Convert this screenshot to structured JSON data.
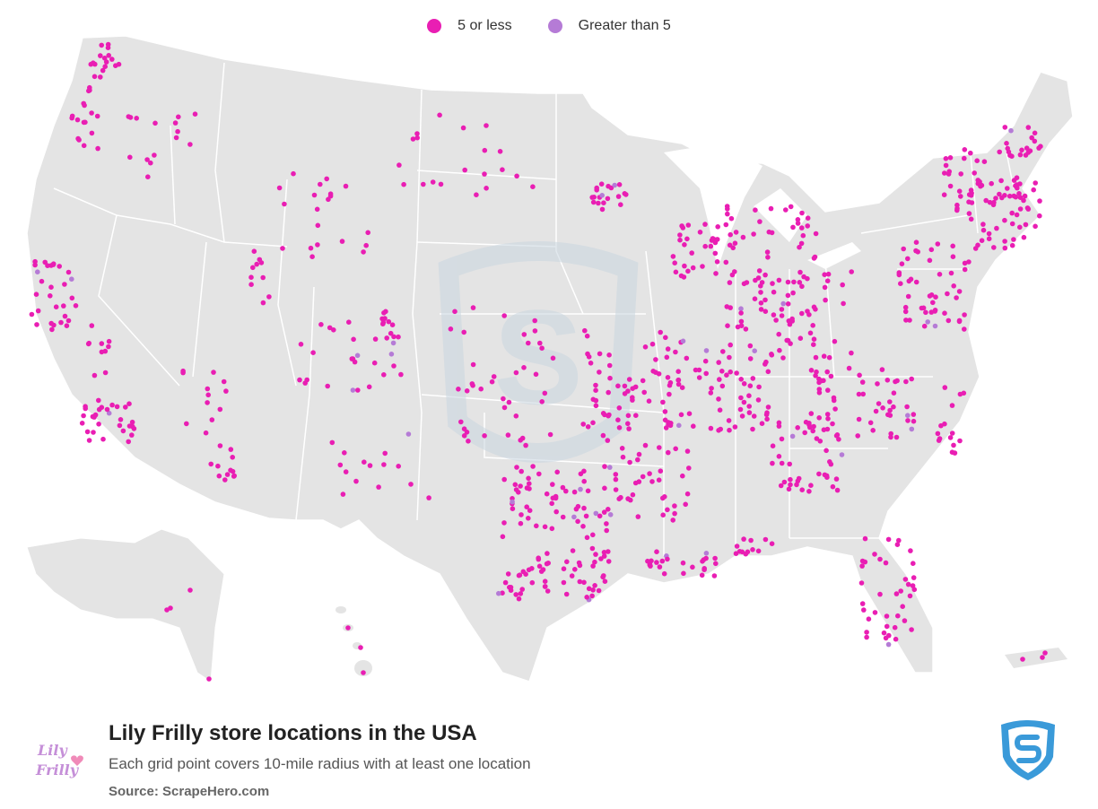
{
  "legend": {
    "items": [
      {
        "label": "5 or less",
        "color": "#e91eb3"
      },
      {
        "label": "Greater than 5",
        "color": "#b57bd6"
      }
    ]
  },
  "map": {
    "land_color": "#e4e4e4",
    "border_color": "#ffffff",
    "dot_color_low": "#e91eb3",
    "dot_color_high": "#b57bd6",
    "watermark_color": "#c9d6e0"
  },
  "footer": {
    "title": "Lily Frilly store locations in the USA",
    "subtitle": "Each grid point covers 10-mile radius with at least one location",
    "source": "Source: ScrapeHero.com"
  },
  "logos": {
    "brand": {
      "name": "lily-frilly-logo",
      "text_line1": "Lily",
      "text_line2": "Frilly"
    },
    "scrapehero": {
      "name": "scrapehero-shield-logo",
      "color": "#3a9ad9"
    }
  }
}
